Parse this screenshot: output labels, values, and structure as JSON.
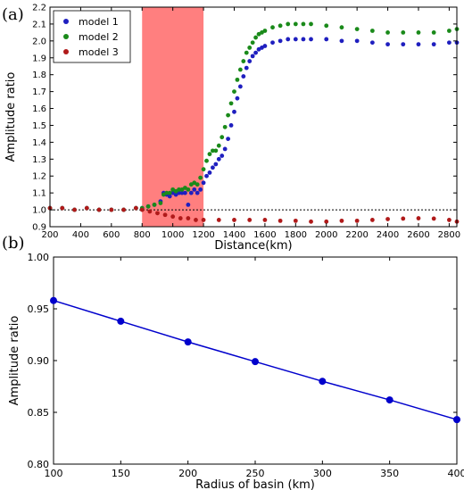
{
  "chart_data": [
    {
      "panel_label": "(a)",
      "type": "scatter",
      "xlabel": "Distance(km)",
      "ylabel": "Amplitude ratio",
      "xlim": [
        200,
        2850
      ],
      "ylim": [
        0.9,
        2.2
      ],
      "xticks": [
        200,
        400,
        600,
        800,
        1000,
        1200,
        1400,
        1600,
        1800,
        2000,
        2200,
        2400,
        2600,
        2800
      ],
      "yticks": [
        0.9,
        1.0,
        1.1,
        1.2,
        1.3,
        1.4,
        1.5,
        1.6,
        1.7,
        1.8,
        1.9,
        2.0,
        2.1,
        2.2
      ],
      "shaded_region": {
        "x": [
          800,
          1200
        ],
        "color": "#ff7f7f"
      },
      "reference_line": {
        "y": 1.0,
        "style": "dotted"
      },
      "legend_position": "top-left",
      "series": [
        {
          "name": "model 1",
          "color": "#1f1fbf",
          "points": [
            [
              200,
              1.01
            ],
            [
              280,
              1.01
            ],
            [
              360,
              1.0
            ],
            [
              440,
              1.01
            ],
            [
              520,
              1.0
            ],
            [
              600,
              1.0
            ],
            [
              680,
              1.0
            ],
            [
              760,
              1.01
            ],
            [
              800,
              1.01
            ],
            [
              840,
              1.02
            ],
            [
              880,
              1.03
            ],
            [
              920,
              1.05
            ],
            [
              940,
              1.1
            ],
            [
              960,
              1.09
            ],
            [
              980,
              1.08
            ],
            [
              1000,
              1.1
            ],
            [
              1020,
              1.09
            ],
            [
              1040,
              1.1
            ],
            [
              1060,
              1.1
            ],
            [
              1080,
              1.1
            ],
            [
              1100,
              1.03
            ],
            [
              1120,
              1.1
            ],
            [
              1140,
              1.12
            ],
            [
              1160,
              1.1
            ],
            [
              1180,
              1.12
            ],
            [
              1200,
              1.16
            ],
            [
              1220,
              1.2
            ],
            [
              1240,
              1.22
            ],
            [
              1260,
              1.25
            ],
            [
              1280,
              1.27
            ],
            [
              1300,
              1.3
            ],
            [
              1320,
              1.32
            ],
            [
              1340,
              1.36
            ],
            [
              1360,
              1.42
            ],
            [
              1380,
              1.5
            ],
            [
              1400,
              1.58
            ],
            [
              1420,
              1.66
            ],
            [
              1440,
              1.73
            ],
            [
              1460,
              1.79
            ],
            [
              1480,
              1.84
            ],
            [
              1500,
              1.88
            ],
            [
              1520,
              1.91
            ],
            [
              1540,
              1.93
            ],
            [
              1560,
              1.95
            ],
            [
              1580,
              1.96
            ],
            [
              1600,
              1.97
            ],
            [
              1650,
              1.99
            ],
            [
              1700,
              2.0
            ],
            [
              1750,
              2.01
            ],
            [
              1800,
              2.01
            ],
            [
              1850,
              2.01
            ],
            [
              1900,
              2.01
            ],
            [
              2000,
              2.01
            ],
            [
              2100,
              2.0
            ],
            [
              2200,
              2.0
            ],
            [
              2300,
              1.99
            ],
            [
              2400,
              1.98
            ],
            [
              2500,
              1.98
            ],
            [
              2600,
              1.98
            ],
            [
              2700,
              1.98
            ],
            [
              2800,
              1.99
            ],
            [
              2850,
              1.99
            ]
          ]
        },
        {
          "name": "model 2",
          "color": "#1a8a1a",
          "points": [
            [
              200,
              1.01
            ],
            [
              280,
              1.01
            ],
            [
              360,
              1.0
            ],
            [
              440,
              1.01
            ],
            [
              520,
              1.0
            ],
            [
              600,
              1.0
            ],
            [
              680,
              1.0
            ],
            [
              760,
              1.01
            ],
            [
              800,
              1.01
            ],
            [
              840,
              1.02
            ],
            [
              880,
              1.03
            ],
            [
              920,
              1.04
            ],
            [
              940,
              1.09
            ],
            [
              960,
              1.1
            ],
            [
              980,
              1.1
            ],
            [
              1000,
              1.12
            ],
            [
              1020,
              1.11
            ],
            [
              1040,
              1.12
            ],
            [
              1060,
              1.12
            ],
            [
              1080,
              1.13
            ],
            [
              1100,
              1.12
            ],
            [
              1120,
              1.15
            ],
            [
              1140,
              1.16
            ],
            [
              1160,
              1.15
            ],
            [
              1180,
              1.19
            ],
            [
              1200,
              1.24
            ],
            [
              1220,
              1.29
            ],
            [
              1240,
              1.33
            ],
            [
              1260,
              1.35
            ],
            [
              1280,
              1.35
            ],
            [
              1300,
              1.38
            ],
            [
              1320,
              1.43
            ],
            [
              1340,
              1.49
            ],
            [
              1360,
              1.56
            ],
            [
              1380,
              1.63
            ],
            [
              1400,
              1.7
            ],
            [
              1420,
              1.77
            ],
            [
              1440,
              1.83
            ],
            [
              1460,
              1.88
            ],
            [
              1480,
              1.93
            ],
            [
              1500,
              1.96
            ],
            [
              1520,
              1.99
            ],
            [
              1540,
              2.02
            ],
            [
              1560,
              2.04
            ],
            [
              1580,
              2.05
            ],
            [
              1600,
              2.06
            ],
            [
              1650,
              2.08
            ],
            [
              1700,
              2.09
            ],
            [
              1750,
              2.1
            ],
            [
              1800,
              2.1
            ],
            [
              1850,
              2.1
            ],
            [
              1900,
              2.1
            ],
            [
              2000,
              2.09
            ],
            [
              2100,
              2.08
            ],
            [
              2200,
              2.07
            ],
            [
              2300,
              2.06
            ],
            [
              2400,
              2.05
            ],
            [
              2500,
              2.05
            ],
            [
              2600,
              2.05
            ],
            [
              2700,
              2.05
            ],
            [
              2800,
              2.06
            ],
            [
              2850,
              2.07
            ]
          ]
        },
        {
          "name": "model 3",
          "color": "#b01a1a",
          "points": [
            [
              200,
              1.01
            ],
            [
              280,
              1.01
            ],
            [
              360,
              1.0
            ],
            [
              440,
              1.01
            ],
            [
              520,
              1.0
            ],
            [
              600,
              1.0
            ],
            [
              680,
              1.0
            ],
            [
              760,
              1.01
            ],
            [
              800,
              1.0
            ],
            [
              850,
              0.99
            ],
            [
              900,
              0.98
            ],
            [
              950,
              0.97
            ],
            [
              1000,
              0.96
            ],
            [
              1050,
              0.95
            ],
            [
              1100,
              0.95
            ],
            [
              1150,
              0.94
            ],
            [
              1200,
              0.94
            ],
            [
              1300,
              0.94
            ],
            [
              1400,
              0.94
            ],
            [
              1500,
              0.94
            ],
            [
              1600,
              0.94
            ],
            [
              1700,
              0.935
            ],
            [
              1800,
              0.935
            ],
            [
              1900,
              0.93
            ],
            [
              2000,
              0.93
            ],
            [
              2100,
              0.935
            ],
            [
              2200,
              0.935
            ],
            [
              2300,
              0.94
            ],
            [
              2400,
              0.945
            ],
            [
              2500,
              0.948
            ],
            [
              2600,
              0.95
            ],
            [
              2700,
              0.948
            ],
            [
              2800,
              0.94
            ],
            [
              2850,
              0.93
            ]
          ]
        }
      ]
    },
    {
      "panel_label": "(b)",
      "type": "line",
      "xlabel": "Radius of basin (km)",
      "ylabel": "Amplitude ratio",
      "xlim": [
        100,
        400
      ],
      "ylim": [
        0.8,
        1.0
      ],
      "xticks": [
        100,
        150,
        200,
        250,
        300,
        350,
        400
      ],
      "yticks": [
        "0.80",
        "0.85",
        "0.90",
        "0.95",
        "1.00"
      ],
      "series": [
        {
          "color": "#0000cc",
          "x": [
            100,
            150,
            200,
            250,
            300,
            350,
            400
          ],
          "y": [
            0.958,
            0.938,
            0.918,
            0.899,
            0.88,
            0.862,
            0.843
          ]
        }
      ]
    }
  ]
}
